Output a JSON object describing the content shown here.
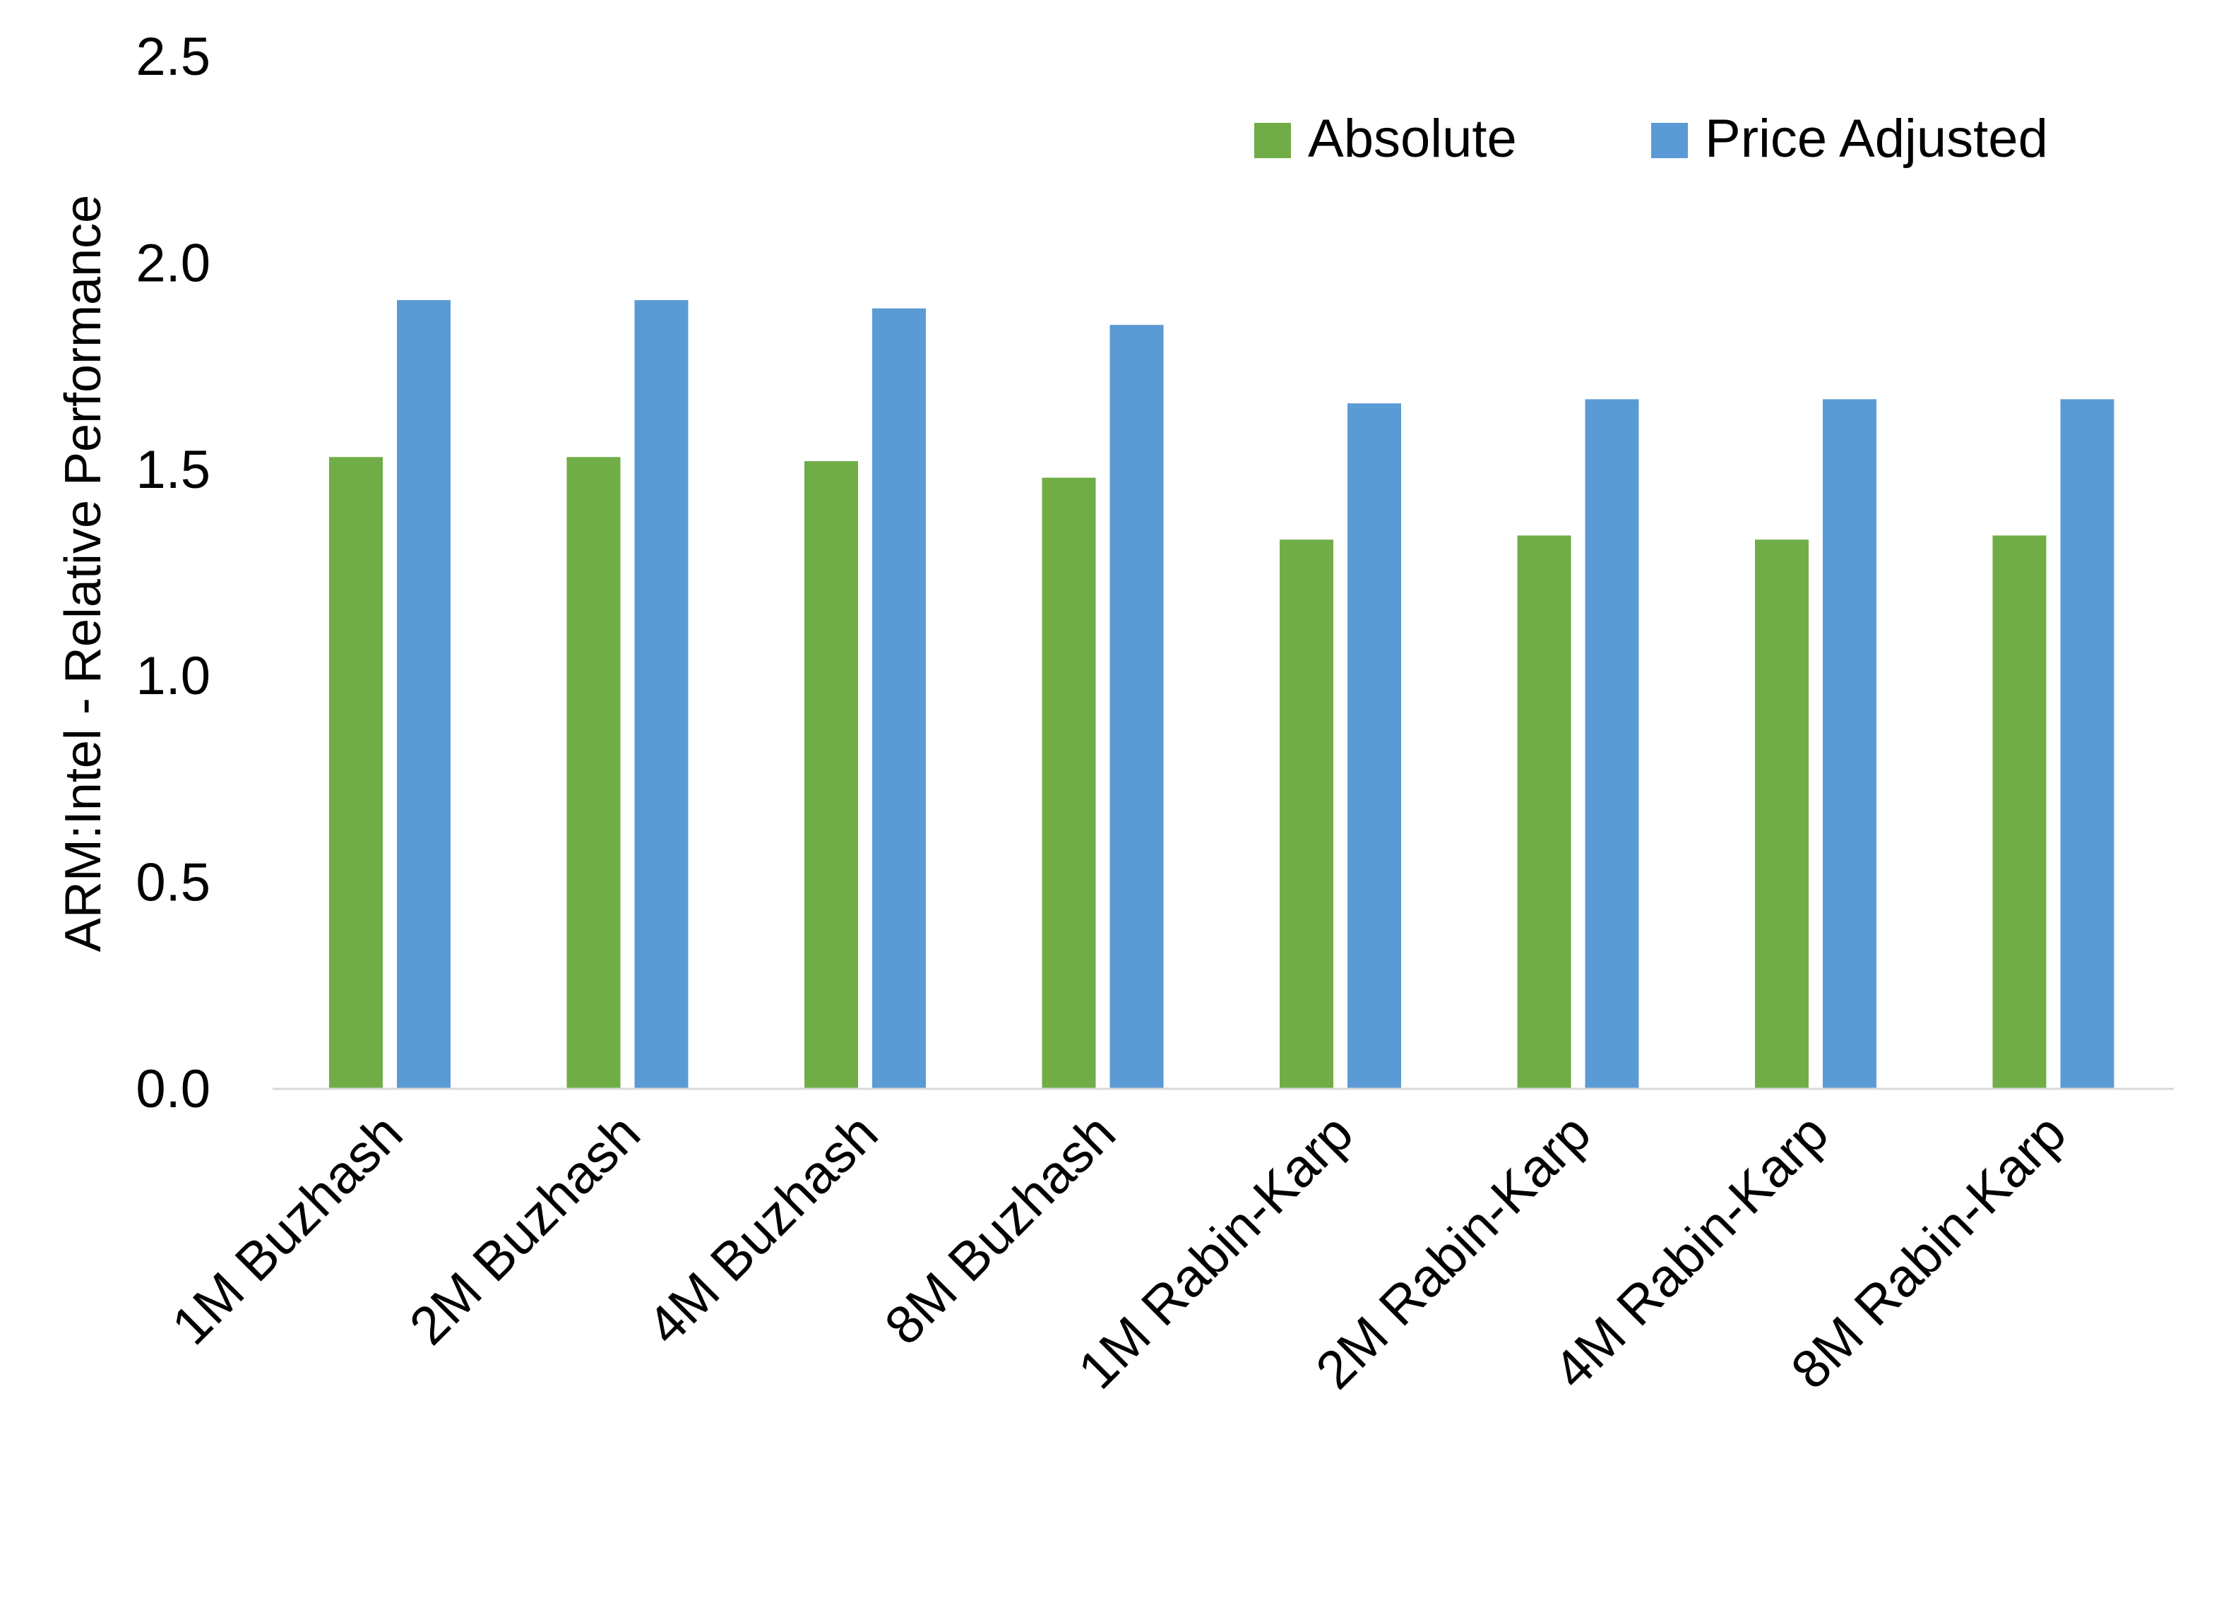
{
  "chart_data": {
    "type": "bar",
    "title": "",
    "xlabel": "",
    "ylabel": "ARM:Intel - Relative Performance",
    "ylim": [
      0,
      2.5
    ],
    "yticks": [
      "0.0",
      "0.5",
      "1.0",
      "1.5",
      "2.0",
      "2.5"
    ],
    "grid": false,
    "legend_position": "top-right",
    "categories": [
      "1M Buzhash",
      "2M Buzhash",
      "4M Buzhash",
      "8M Buzhash",
      "1M Rabin-Karp",
      "2M Rabin-Karp",
      "4M Rabin-Karp",
      "8M Rabin-Karp"
    ],
    "series": [
      {
        "name": "Absolute",
        "color": "#70AD47",
        "values": [
          1.53,
          1.53,
          1.52,
          1.48,
          1.33,
          1.34,
          1.33,
          1.34
        ]
      },
      {
        "name": "Price Adjusted",
        "color": "#5B9BD5",
        "values": [
          1.91,
          1.91,
          1.89,
          1.85,
          1.66,
          1.67,
          1.67,
          1.67
        ]
      }
    ]
  }
}
